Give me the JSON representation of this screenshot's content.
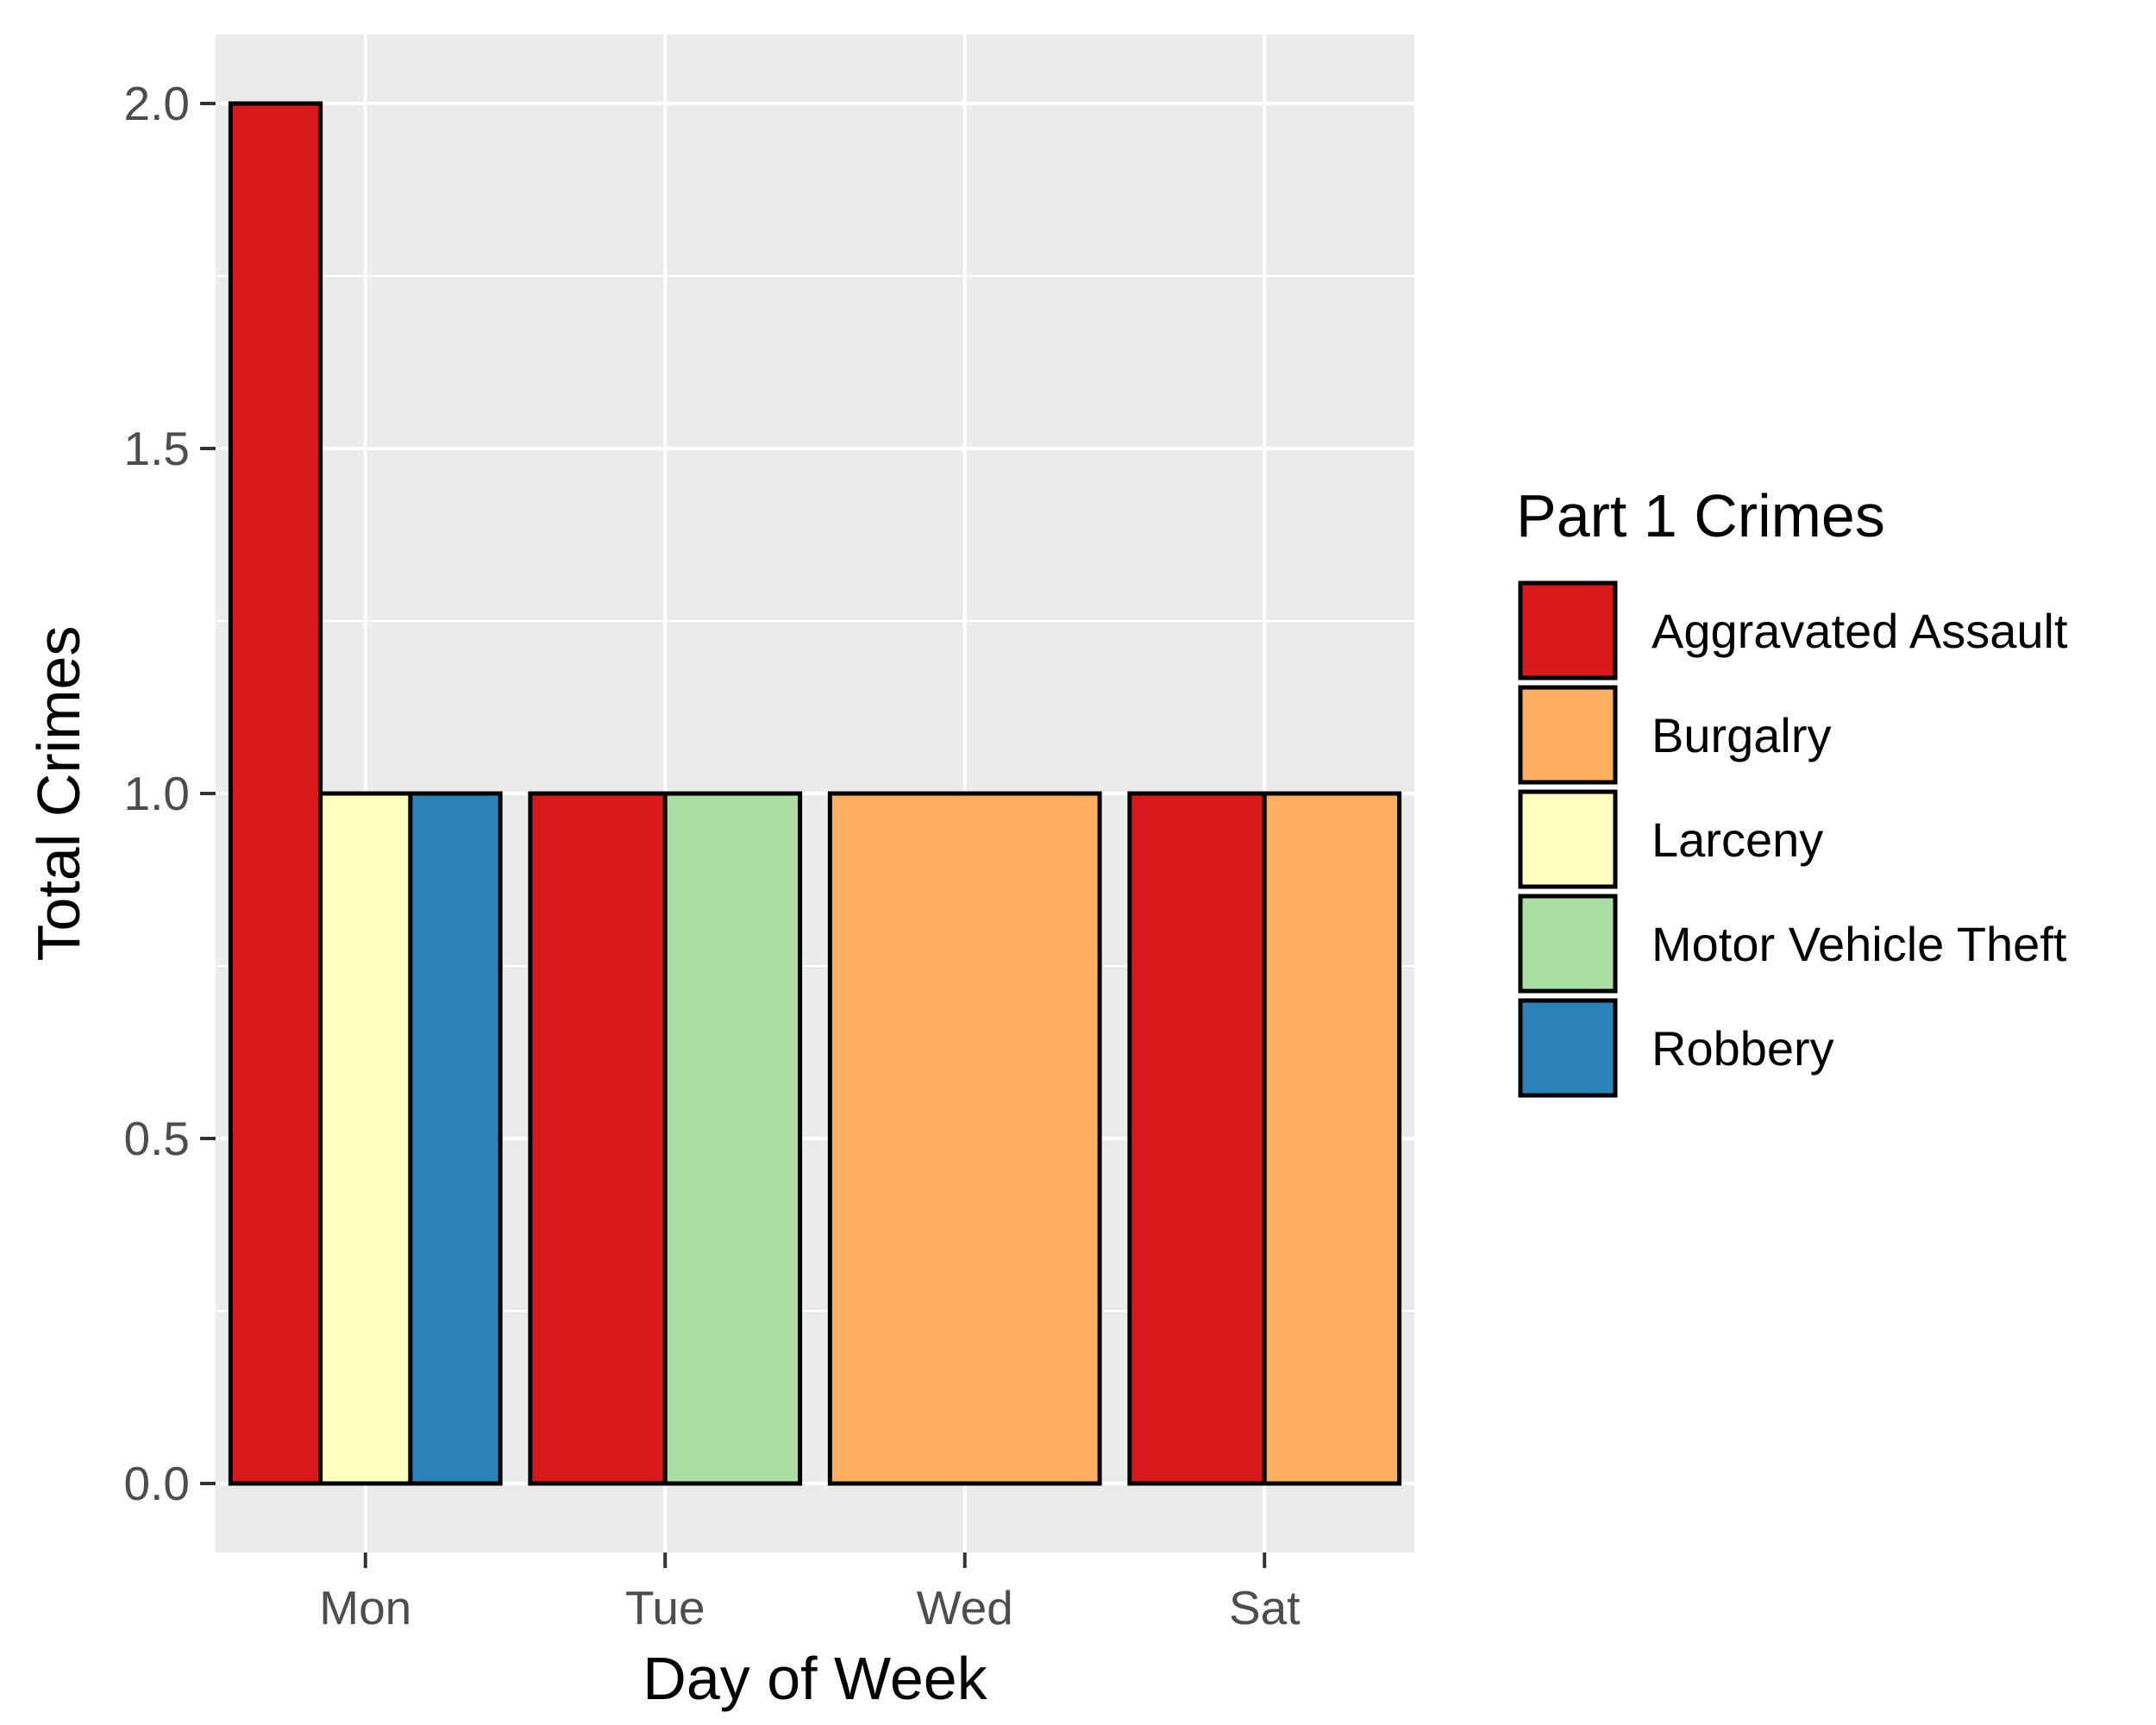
{
  "chart_data": {
    "type": "bar",
    "layout": "dodged",
    "xlabel": "Day of Week",
    "ylabel": "Total Crimes",
    "categories": [
      "Mon",
      "Tue",
      "Wed",
      "Sat"
    ],
    "ylim": [
      -0.1,
      2.1
    ],
    "yticks": [
      "0.0",
      "0.5",
      "1.0",
      "1.5",
      "2.0"
    ],
    "grid": true,
    "legend": {
      "title": "Part 1 Crimes",
      "position": "right",
      "entries": [
        {
          "label": "Aggravated Assault",
          "color": "#d7191c"
        },
        {
          "label": "Burgalry",
          "color": "#fdae61"
        },
        {
          "label": "Larceny",
          "color": "#ffffbf"
        },
        {
          "label": "Motor Vehicle Theft",
          "color": "#abdda4"
        },
        {
          "label": "Robbery",
          "color": "#2b83ba"
        }
      ]
    },
    "bars": [
      {
        "day": "Mon",
        "crime": "Aggravated Assault",
        "value": 2
      },
      {
        "day": "Mon",
        "crime": "Larceny",
        "value": 1
      },
      {
        "day": "Mon",
        "crime": "Robbery",
        "value": 1
      },
      {
        "day": "Tue",
        "crime": "Aggravated Assault",
        "value": 1
      },
      {
        "day": "Tue",
        "crime": "Motor Vehicle Theft",
        "value": 1
      },
      {
        "day": "Wed",
        "crime": "Burgalry",
        "value": 1
      },
      {
        "day": "Sat",
        "crime": "Aggravated Assault",
        "value": 1
      },
      {
        "day": "Sat",
        "crime": "Burgalry",
        "value": 1
      }
    ],
    "colors": {
      "panel_background": "#ebebeb",
      "grid": "#ffffff",
      "bar_outline": "#000000"
    }
  }
}
